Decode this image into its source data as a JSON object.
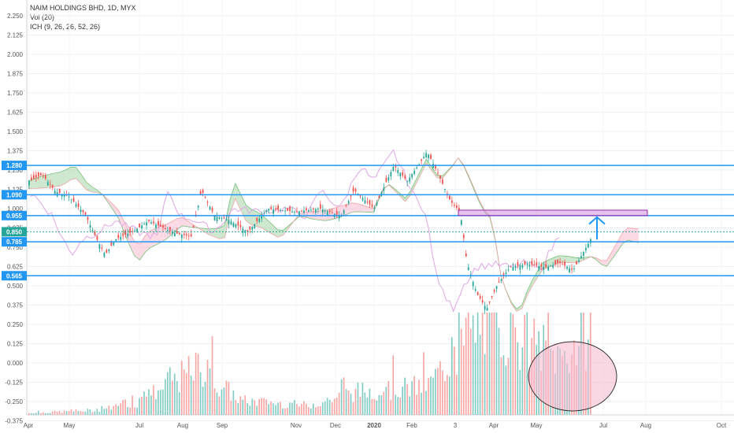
{
  "legend": {
    "title": "NAIM HOLDINGS BHD, 1D, MYX",
    "volume": "Vol (20)",
    "ichimoku": "ICH (9, 26, 26, 52, 26)"
  },
  "colors": {
    "up": "#26a69a",
    "down": "#ef5350",
    "level_line": "#2196f3",
    "ichimoku_bull_cloud": "#a5d6a7",
    "ichimoku_bear_cloud": "#f8bbd0",
    "lagging_span": "#e1a6e6",
    "zone": "#ce93d8",
    "ellipse_fill": "#f8bbd0",
    "last_price": "#26a69a"
  },
  "chart_data": {
    "type": "candlestick",
    "yaxis_ticks": [
      "2.250",
      "2.125",
      "2.000",
      "1.875",
      "1.750",
      "1.625",
      "1.500",
      "1.375",
      "1.250",
      "1.125",
      "1.000",
      "0.875",
      "0.750",
      "0.625",
      "0.500",
      "0.375",
      "0.250",
      "0.125",
      "0.000",
      "-0.125",
      "-0.250",
      "-0.375"
    ],
    "xaxis_ticks": [
      "Apr",
      "May",
      "Jul",
      "Aug",
      "Sep",
      "Nov",
      "Dec",
      "2020",
      "Feb",
      "3",
      "Apr",
      "May",
      "Jul",
      "Aug",
      "Oct"
    ],
    "price_labels": [
      {
        "text": "1.280",
        "value": 1.28,
        "color": "#2196f3"
      },
      {
        "text": "1.090",
        "value": 1.09,
        "color": "#2196f3"
      },
      {
        "text": "0.955",
        "value": 0.955,
        "color": "#2196f3"
      },
      {
        "text": "0.850",
        "value": 0.85,
        "color": "#26a69a"
      },
      {
        "text": "0.785",
        "value": 0.785,
        "color": "#2196f3"
      },
      {
        "text": "0.565",
        "value": 0.565,
        "color": "#2196f3"
      }
    ],
    "horizontal_levels": [
      1.28,
      1.09,
      0.955,
      0.785,
      0.565
    ],
    "last_price": 0.85,
    "resistance_zone": {
      "from": 0.955,
      "to": 0.99
    },
    "close_path": [
      {
        "x": 0,
        "y": 1.18
      },
      {
        "x": 0.02,
        "y": 1.22
      },
      {
        "x": 0.04,
        "y": 1.11
      },
      {
        "x": 0.06,
        "y": 1.08
      },
      {
        "x": 0.085,
        "y": 0.96
      },
      {
        "x": 0.1,
        "y": 0.82
      },
      {
        "x": 0.115,
        "y": 0.7
      },
      {
        "x": 0.13,
        "y": 0.8
      },
      {
        "x": 0.16,
        "y": 0.86
      },
      {
        "x": 0.18,
        "y": 0.92
      },
      {
        "x": 0.2,
        "y": 0.88
      },
      {
        "x": 0.22,
        "y": 0.84
      },
      {
        "x": 0.245,
        "y": 0.82
      },
      {
        "x": 0.26,
        "y": 1.12
      },
      {
        "x": 0.28,
        "y": 0.95
      },
      {
        "x": 0.3,
        "y": 0.93
      },
      {
        "x": 0.33,
        "y": 0.85
      },
      {
        "x": 0.36,
        "y": 1.0
      },
      {
        "x": 0.4,
        "y": 0.98
      },
      {
        "x": 0.44,
        "y": 1.0
      },
      {
        "x": 0.47,
        "y": 0.95
      },
      {
        "x": 0.49,
        "y": 1.12
      },
      {
        "x": 0.52,
        "y": 1.0
      },
      {
        "x": 0.55,
        "y": 1.28
      },
      {
        "x": 0.57,
        "y": 1.18
      },
      {
        "x": 0.59,
        "y": 1.3
      },
      {
        "x": 0.6,
        "y": 1.37
      },
      {
        "x": 0.615,
        "y": 1.24
      },
      {
        "x": 0.635,
        "y": 1.05
      },
      {
        "x": 0.65,
        "y": 0.98
      },
      {
        "x": 0.66,
        "y": 0.65
      },
      {
        "x": 0.675,
        "y": 0.45
      },
      {
        "x": 0.69,
        "y": 0.35
      },
      {
        "x": 0.705,
        "y": 0.5
      },
      {
        "x": 0.725,
        "y": 0.62
      },
      {
        "x": 0.75,
        "y": 0.64
      },
      {
        "x": 0.78,
        "y": 0.62
      },
      {
        "x": 0.8,
        "y": 0.65
      },
      {
        "x": 0.82,
        "y": 0.6
      },
      {
        "x": 0.84,
        "y": 0.75
      },
      {
        "x": 0.85,
        "y": 0.83
      }
    ],
    "volume_path": [
      {
        "x": 0,
        "y": 0.02
      },
      {
        "x": 0.1,
        "y": 0.05
      },
      {
        "x": 0.16,
        "y": 0.12
      },
      {
        "x": 0.255,
        "y": 0.5
      },
      {
        "x": 0.32,
        "y": 0.15
      },
      {
        "x": 0.42,
        "y": 0.1
      },
      {
        "x": 0.5,
        "y": 0.25
      },
      {
        "x": 0.6,
        "y": 0.3
      },
      {
        "x": 0.69,
        "y": 1.0
      },
      {
        "x": 0.72,
        "y": 0.9
      },
      {
        "x": 0.8,
        "y": 0.6
      },
      {
        "x": 0.85,
        "y": 0.85
      }
    ]
  }
}
